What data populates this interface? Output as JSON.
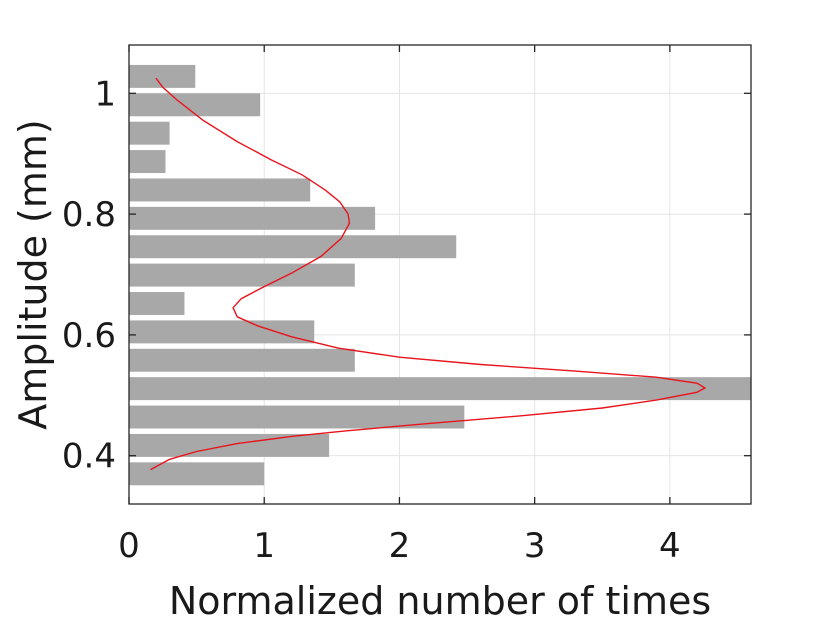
{
  "chart_data": {
    "type": "bar",
    "orientation": "horizontal",
    "title": "",
    "xlabel": "Normalized number of times",
    "ylabel": "Amplitude (mm)",
    "xlim": [
      0,
      4.6
    ],
    "ylim": [
      0.32,
      1.08
    ],
    "grid": true,
    "legend": "none",
    "xticks": [
      0,
      1,
      2,
      3,
      4
    ],
    "yticks": [
      0.4,
      0.6,
      0.8,
      1.0
    ],
    "xtick_labels": [
      "0",
      "1",
      "2",
      "3",
      "4"
    ],
    "ytick_labels": [
      "0.4",
      "0.6",
      "0.8",
      "1"
    ],
    "bar_width": 0.038,
    "bar_color": "#a8a8a8",
    "line_color": "#e8141b",
    "bars": [
      {
        "y": 0.37,
        "value": 1.0
      },
      {
        "y": 0.417,
        "value": 1.48
      },
      {
        "y": 0.464,
        "value": 2.48
      },
      {
        "y": 0.511,
        "value": 4.6
      },
      {
        "y": 0.558,
        "value": 1.67
      },
      {
        "y": 0.605,
        "value": 1.37
      },
      {
        "y": 0.652,
        "value": 0.41
      },
      {
        "y": 0.699,
        "value": 1.67
      },
      {
        "y": 0.746,
        "value": 2.42
      },
      {
        "y": 0.793,
        "value": 1.82
      },
      {
        "y": 0.84,
        "value": 1.34
      },
      {
        "y": 0.887,
        "value": 0.27
      },
      {
        "y": 0.934,
        "value": 0.3
      },
      {
        "y": 0.981,
        "value": 0.97
      },
      {
        "y": 1.028,
        "value": 0.49
      }
    ],
    "fit_curve": {
      "points": [
        [
          0.16,
          0.377
        ],
        [
          0.3,
          0.394
        ],
        [
          0.5,
          0.407
        ],
        [
          0.8,
          0.42
        ],
        [
          1.2,
          0.432
        ],
        [
          1.6,
          0.441
        ],
        [
          2.2,
          0.453
        ],
        [
          2.9,
          0.466
        ],
        [
          3.5,
          0.479
        ],
        [
          3.9,
          0.492
        ],
        [
          4.2,
          0.505
        ],
        [
          4.26,
          0.512
        ],
        [
          4.2,
          0.52
        ],
        [
          3.9,
          0.53
        ],
        [
          3.3,
          0.54
        ],
        [
          2.6,
          0.551
        ],
        [
          2.0,
          0.563
        ],
        [
          1.55,
          0.578
        ],
        [
          1.2,
          0.597
        ],
        [
          0.95,
          0.615
        ],
        [
          0.8,
          0.63
        ],
        [
          0.77,
          0.645
        ],
        [
          0.83,
          0.66
        ],
        [
          1.0,
          0.68
        ],
        [
          1.2,
          0.702
        ],
        [
          1.42,
          0.73
        ],
        [
          1.57,
          0.76
        ],
        [
          1.63,
          0.785
        ],
        [
          1.62,
          0.8
        ],
        [
          1.56,
          0.82
        ],
        [
          1.45,
          0.84
        ],
        [
          1.28,
          0.865
        ],
        [
          1.05,
          0.89
        ],
        [
          0.8,
          0.92
        ],
        [
          0.55,
          0.955
        ],
        [
          0.35,
          0.99
        ],
        [
          0.25,
          1.01
        ],
        [
          0.2,
          1.025
        ]
      ]
    }
  }
}
